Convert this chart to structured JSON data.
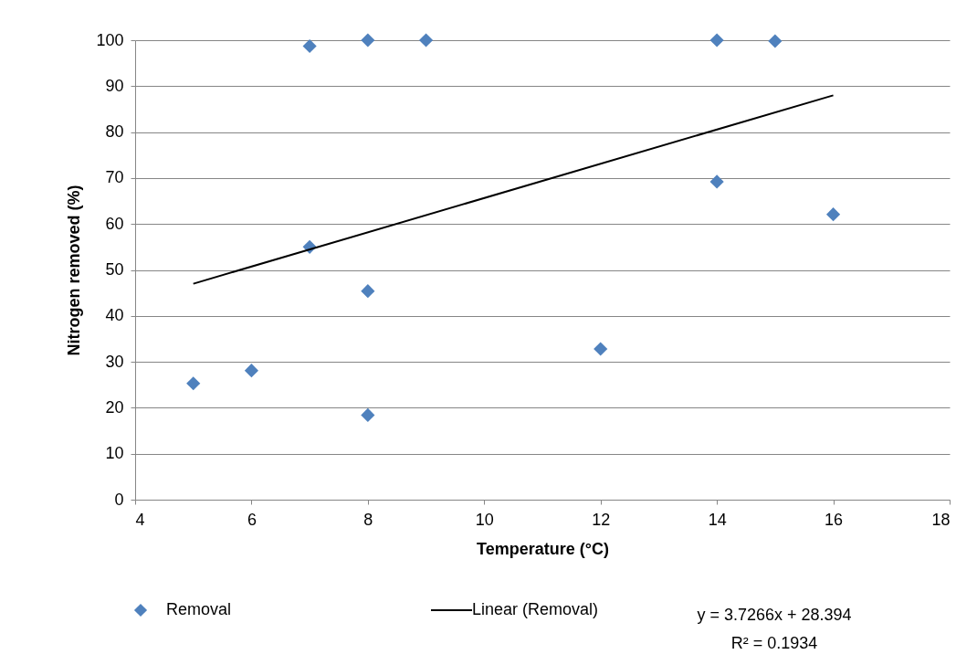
{
  "chart_data": {
    "type": "scatter",
    "xlabel": "Temperature (°C)",
    "ylabel": "Nitrogen removed (%)",
    "xlim": [
      4,
      18
    ],
    "xticks": [
      4,
      6,
      8,
      10,
      12,
      14,
      16,
      18
    ],
    "ylim": [
      0,
      100
    ],
    "yticks": [
      0,
      10,
      20,
      30,
      40,
      50,
      60,
      70,
      80,
      90,
      100
    ],
    "grid": "y",
    "legend": "bottom left",
    "series": [
      {
        "name": "Removal",
        "marker": "diamond",
        "color": "#4f81bd",
        "x": [
          5,
          6,
          7,
          7,
          8,
          8,
          8,
          9,
          12,
          14,
          14,
          15,
          16
        ],
        "values": [
          25.3,
          28.1,
          98.7,
          55,
          100,
          45.4,
          18.4,
          100,
          32.8,
          100,
          69.2,
          99.8,
          62.1
        ]
      },
      {
        "name": "Linear (Removal)",
        "type": "line",
        "marker": "none",
        "color": "#000000",
        "x": [
          5,
          16
        ],
        "values": [
          47.0,
          88.0
        ]
      }
    ],
    "annotations": [
      "y = 3.7266x + 28.394",
      "R² = 0.1934"
    ]
  }
}
